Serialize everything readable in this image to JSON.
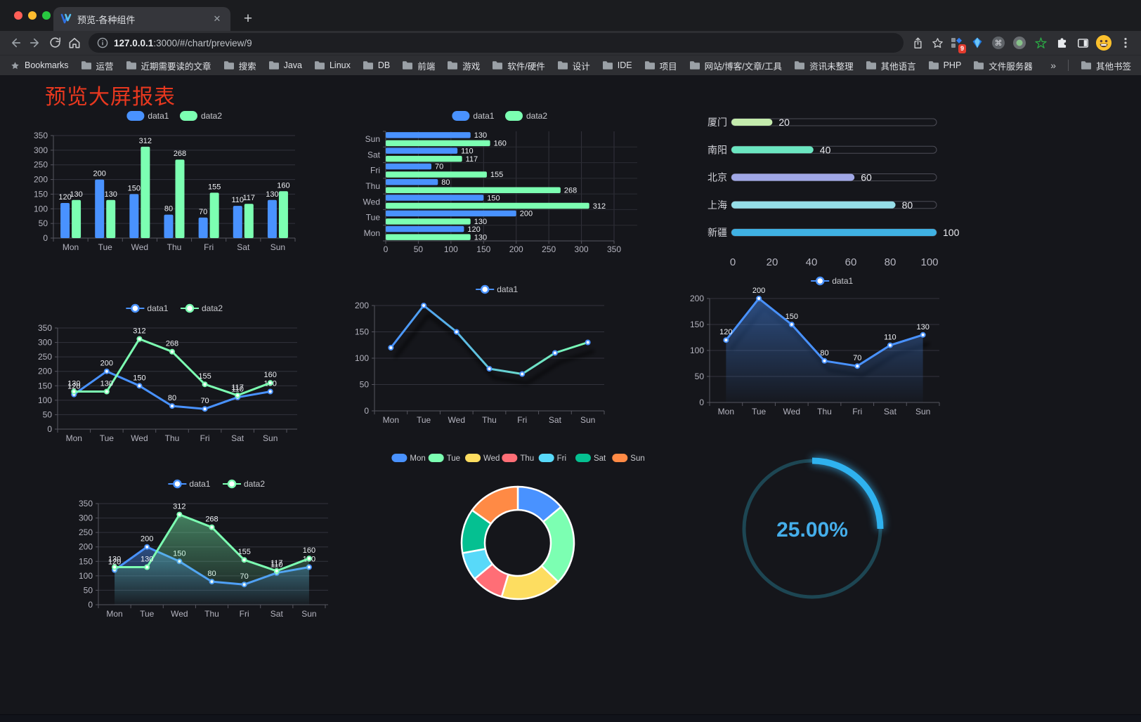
{
  "browser": {
    "tab": {
      "title": "预览-各种组件",
      "close_label": "✕"
    },
    "new_tab_label": "+",
    "toolbar": {
      "url_host": "127.0.0.1",
      "url_rest": ":3000/#/chart/preview/9",
      "extension_badge": "9"
    }
  },
  "bookmarks": {
    "label": "Bookmarks",
    "items": [
      "运营",
      "近期需要读的文章",
      "搜索",
      "Java",
      "Linux",
      "DB",
      "前端",
      "游戏",
      "软件/硬件",
      "设计",
      "IDE",
      "项目",
      "网站/博客/文章/工具",
      "资讯未整理",
      "其他语言",
      "PHP",
      "文件服务器"
    ],
    "overflow": "»",
    "other": "其他书签"
  },
  "page": {
    "title": "预览大屏报表",
    "title_color": "#e8381f"
  },
  "chart_data": [
    {
      "id": "grouped-bar",
      "type": "bar",
      "categories": [
        "Mon",
        "Tue",
        "Wed",
        "Thu",
        "Fri",
        "Sat",
        "Sun"
      ],
      "series": [
        {
          "name": "data1",
          "color": "#4992ff",
          "values": [
            120,
            200,
            150,
            80,
            70,
            110,
            130
          ]
        },
        {
          "name": "data2",
          "color": "#7cffb2",
          "values": [
            130,
            130,
            312,
            268,
            155,
            117,
            160
          ]
        }
      ],
      "ylim": [
        0,
        350
      ],
      "ytick": 50,
      "value_labels": true,
      "legend_position": "top",
      "grid": true
    },
    {
      "id": "grouped-hbar",
      "type": "hbar",
      "categories": [
        "Mon",
        "Tue",
        "Wed",
        "Thu",
        "Fri",
        "Sat",
        "Sun"
      ],
      "series": [
        {
          "name": "data1",
          "color": "#4992ff",
          "values": [
            120,
            200,
            150,
            80,
            70,
            110,
            130
          ]
        },
        {
          "name": "data2",
          "color": "#7cffb2",
          "values": [
            130,
            130,
            312,
            268,
            155,
            117,
            160
          ]
        }
      ],
      "xlim": [
        0,
        350
      ],
      "xtick": 50,
      "value_labels": true,
      "legend_position": "top",
      "grid": true
    },
    {
      "id": "city-progress",
      "type": "progress",
      "items": [
        {
          "label": "厦门",
          "value": 20,
          "color": "#c4ebad"
        },
        {
          "label": "南阳",
          "value": 40,
          "color": "#6be6c1"
        },
        {
          "label": "北京",
          "value": 60,
          "color": "#a0a7e6"
        },
        {
          "label": "上海",
          "value": 80,
          "color": "#96dee8"
        },
        {
          "label": "新疆",
          "value": 100,
          "color": "#3fb1e3"
        }
      ],
      "xlim": [
        0,
        100
      ],
      "xtick": 20
    },
    {
      "id": "two-line",
      "type": "line",
      "categories": [
        "Mon",
        "Tue",
        "Wed",
        "Thu",
        "Fri",
        "Sat",
        "Sun"
      ],
      "series": [
        {
          "name": "data1",
          "color": "#4992ff",
          "values": [
            120,
            200,
            150,
            80,
            70,
            110,
            130
          ]
        },
        {
          "name": "data2",
          "color": "#7cffb2",
          "values": [
            130,
            130,
            312,
            268,
            155,
            117,
            160
          ]
        }
      ],
      "ylim": [
        0,
        350
      ],
      "ytick": 50,
      "value_labels": true,
      "legend_position": "top",
      "grid": true
    },
    {
      "id": "gradient-line",
      "type": "line",
      "categories": [
        "Mon",
        "Tue",
        "Wed",
        "Thu",
        "Fri",
        "Sat",
        "Sun"
      ],
      "series": [
        {
          "name": "data1",
          "color": "#4992ff",
          "color_end": "#7cffb2",
          "gradient": true,
          "values": [
            120,
            200,
            150,
            80,
            70,
            110,
            130
          ]
        }
      ],
      "ylim": [
        0,
        200
      ],
      "ytick": 50,
      "value_labels": false,
      "shadow": true,
      "legend_position": "top",
      "grid": true
    },
    {
      "id": "area-line",
      "type": "line",
      "categories": [
        "Mon",
        "Tue",
        "Wed",
        "Thu",
        "Fri",
        "Sat",
        "Sun"
      ],
      "series": [
        {
          "name": "data1",
          "color": "#4992ff",
          "area": true,
          "values": [
            120,
            200,
            150,
            80,
            70,
            110,
            130
          ]
        }
      ],
      "ylim": [
        0,
        200
      ],
      "ytick": 50,
      "value_labels": true,
      "shadow": true,
      "legend_position": "top",
      "grid": true
    },
    {
      "id": "two-area-line",
      "type": "line",
      "categories": [
        "Mon",
        "Tue",
        "Wed",
        "Thu",
        "Fri",
        "Sat",
        "Sun"
      ],
      "series": [
        {
          "name": "data1",
          "color": "#4992ff",
          "area": true,
          "values": [
            120,
            200,
            150,
            80,
            70,
            110,
            130
          ]
        },
        {
          "name": "data2",
          "color": "#7cffb2",
          "area": true,
          "values": [
            130,
            130,
            312,
            268,
            155,
            117,
            160
          ]
        }
      ],
      "ylim": [
        0,
        350
      ],
      "ytick": 50,
      "value_labels": true,
      "legend_position": "top",
      "grid": true
    },
    {
      "id": "weekday-donut",
      "type": "pie",
      "items": [
        {
          "label": "Mon",
          "value": 120,
          "color": "#4992ff"
        },
        {
          "label": "Tue",
          "value": 200,
          "color": "#7cffb2"
        },
        {
          "label": "Wed",
          "value": 150,
          "color": "#fddd60"
        },
        {
          "label": "Thu",
          "value": 80,
          "color": "#ff6e76"
        },
        {
          "label": "Fri",
          "value": 70,
          "color": "#58d9f9"
        },
        {
          "label": "Sat",
          "value": 110,
          "color": "#05c091"
        },
        {
          "label": "Sun",
          "value": 130,
          "color": "#ff8a45"
        }
      ],
      "donut": true,
      "legend_position": "top"
    },
    {
      "id": "percent-gauge",
      "type": "gauge",
      "value": 25,
      "value_label": "25.00%",
      "color": "#2fb2ef",
      "track_color": "#1d4653",
      "text_color": "#45aeea"
    }
  ]
}
